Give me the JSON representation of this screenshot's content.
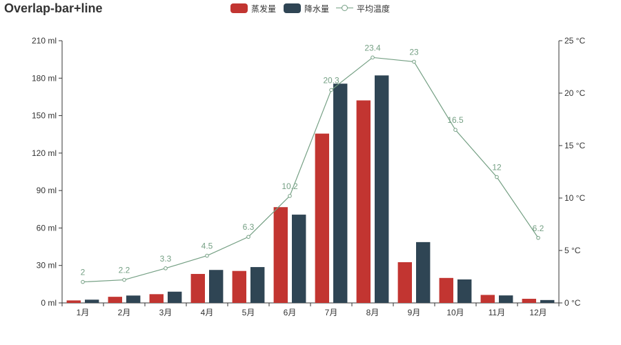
{
  "colors": {
    "evaporation": "#c23531",
    "precipitation": "#2f4554",
    "temperature": "#749f83",
    "axis": "#333333",
    "title": "#333333"
  },
  "legend_icons": [
    "filled-rect",
    "filled-rect",
    "line-with-circle"
  ],
  "chart_data": {
    "type": "bar",
    "title": "Overlap-bar+line",
    "categories": [
      "1月",
      "2月",
      "3月",
      "4月",
      "5月",
      "6月",
      "7月",
      "8月",
      "9月",
      "10月",
      "11月",
      "12月"
    ],
    "series": [
      {
        "name": "蒸发量",
        "type": "bar",
        "axis": "left",
        "values": [
          2.0,
          4.9,
          7.0,
          23.2,
          25.6,
          76.7,
          135.6,
          162.2,
          32.6,
          20.0,
          6.4,
          3.3
        ]
      },
      {
        "name": "降水量",
        "type": "bar",
        "axis": "left",
        "values": [
          2.6,
          5.9,
          9.0,
          26.4,
          28.7,
          70.7,
          175.6,
          182.2,
          48.7,
          18.8,
          6.0,
          2.3
        ]
      },
      {
        "name": "平均温度",
        "type": "line",
        "axis": "right",
        "values": [
          2,
          2.2,
          3.3,
          4.5,
          6.3,
          10.2,
          20.3,
          23.4,
          23,
          16.5,
          12,
          6.2
        ],
        "labels": [
          "2",
          "2.2",
          "3.3",
          "4.5",
          "6.3",
          "10.2",
          "20.3",
          "23.4",
          "23",
          "16.5",
          "12",
          "6.2"
        ]
      }
    ],
    "y_left": {
      "ylim": [
        0,
        210
      ],
      "ticks": [
        "0 ml",
        "30 ml",
        "60 ml",
        "90 ml",
        "120 ml",
        "150 ml",
        "180 ml",
        "210 ml"
      ]
    },
    "y_right": {
      "ylim": [
        0,
        25
      ],
      "ticks": [
        "0 °C",
        "5 °C",
        "10 °C",
        "15 °C",
        "20 °C",
        "25 °C"
      ]
    },
    "grid": false,
    "legend_position": "top-center"
  }
}
